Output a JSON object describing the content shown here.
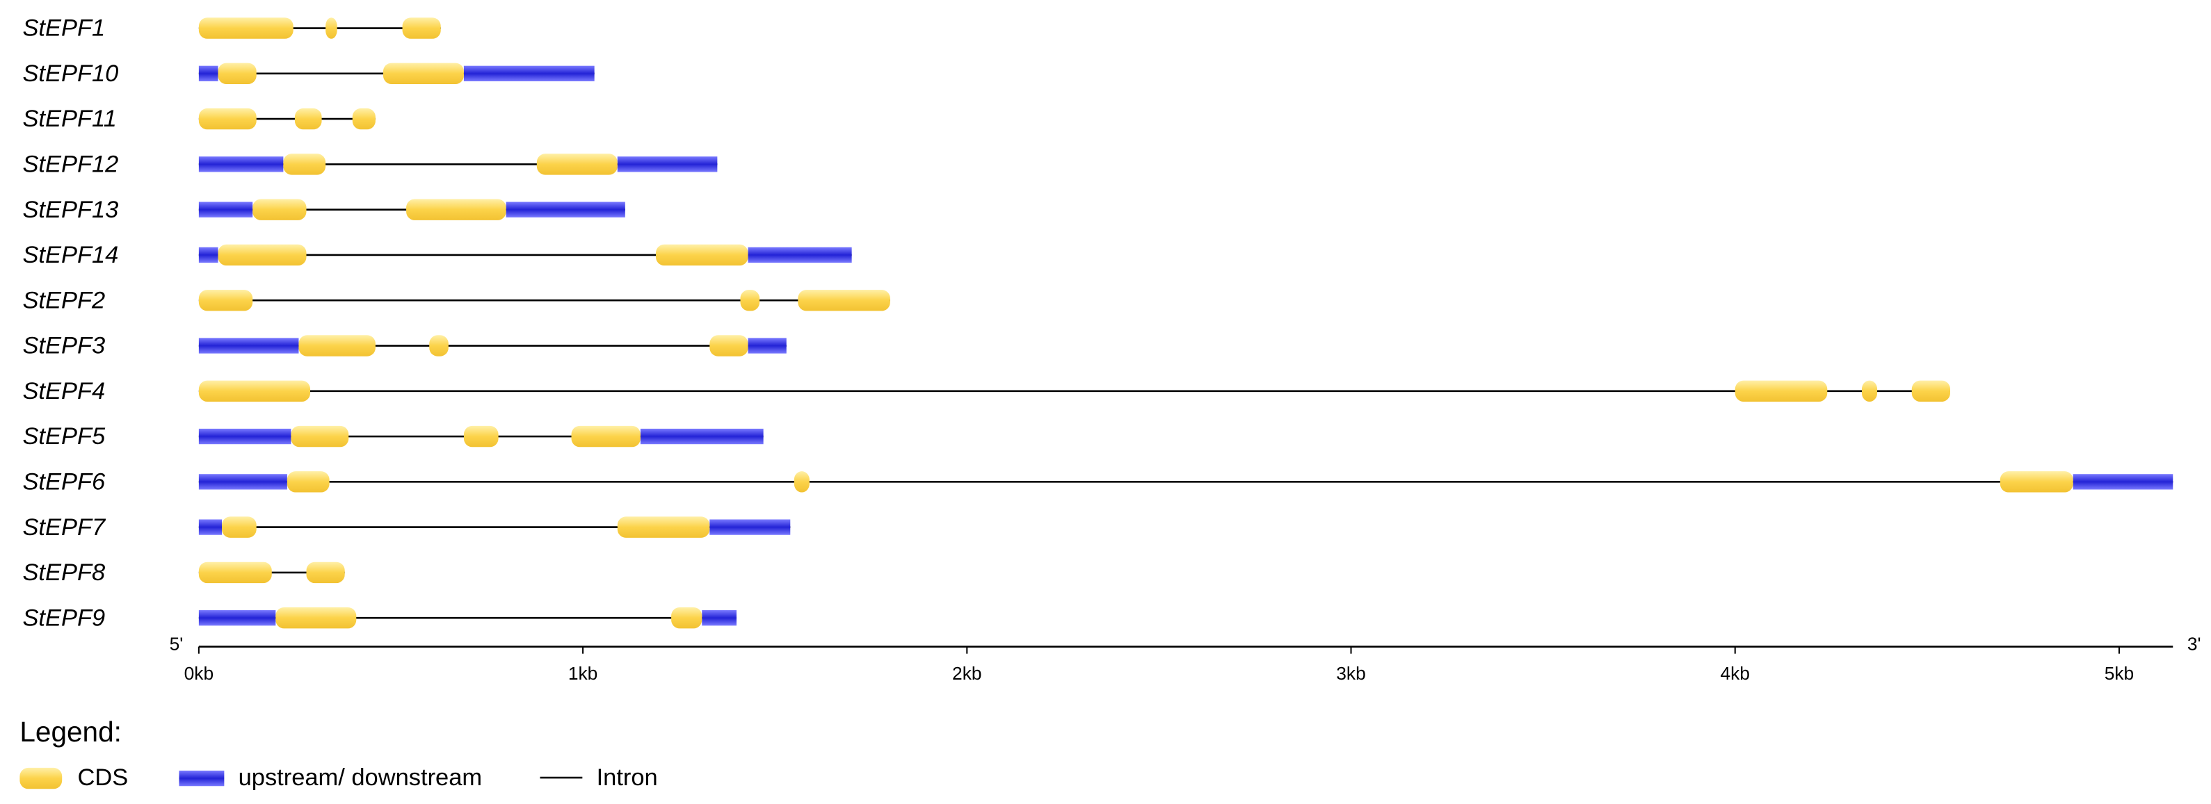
{
  "chart_data": {
    "type": "gene-structure",
    "xlim": [
      0,
      5.14
    ],
    "xticks": [
      {
        "value": 0,
        "label": "0kb"
      },
      {
        "value": 1,
        "label": "1kb"
      },
      {
        "value": 2,
        "label": "2kb"
      },
      {
        "value": 3,
        "label": "3kb"
      },
      {
        "value": 4,
        "label": "4kb"
      },
      {
        "value": 5,
        "label": "5kb"
      }
    ],
    "start_label": "5'",
    "end_label": "3'",
    "cds_color": "#fcd34a",
    "utr_color": "#2323d6",
    "intron_color": "#000000",
    "genes": [
      {
        "name": "StEPF1",
        "cds": [
          [
            0,
            0.246
          ],
          [
            0.33,
            0.36
          ],
          [
            0.53,
            0.63
          ]
        ],
        "utr": []
      },
      {
        "name": "StEPF10",
        "cds": [
          [
            0.05,
            0.15
          ],
          [
            0.48,
            0.69
          ]
        ],
        "utr": [
          [
            0,
            0.05
          ],
          [
            0.69,
            1.03
          ]
        ]
      },
      {
        "name": "StEPF11",
        "cds": [
          [
            0,
            0.15
          ],
          [
            0.25,
            0.32
          ],
          [
            0.4,
            0.46
          ]
        ],
        "utr": []
      },
      {
        "name": "StEPF12",
        "cds": [
          [
            0.22,
            0.33
          ],
          [
            0.88,
            1.09
          ]
        ],
        "utr": [
          [
            0,
            0.22
          ],
          [
            1.09,
            1.35
          ]
        ]
      },
      {
        "name": "StEPF13",
        "cds": [
          [
            0.14,
            0.28
          ],
          [
            0.54,
            0.8
          ]
        ],
        "utr": [
          [
            0,
            0.14
          ],
          [
            0.8,
            1.11
          ]
        ]
      },
      {
        "name": "StEPF14",
        "cds": [
          [
            0.05,
            0.28
          ],
          [
            1.19,
            1.43
          ]
        ],
        "utr": [
          [
            0,
            0.05
          ],
          [
            1.43,
            1.7
          ]
        ]
      },
      {
        "name": "StEPF2",
        "cds": [
          [
            0,
            0.14
          ],
          [
            1.41,
            1.46
          ],
          [
            1.56,
            1.8
          ]
        ],
        "utr": []
      },
      {
        "name": "StEPF3",
        "cds": [
          [
            0.26,
            0.46
          ],
          [
            0.6,
            0.65
          ],
          [
            1.33,
            1.43
          ]
        ],
        "utr": [
          [
            0,
            0.26
          ],
          [
            1.43,
            1.53
          ]
        ]
      },
      {
        "name": "StEPF4",
        "cds": [
          [
            0,
            0.29
          ],
          [
            4.0,
            4.24
          ],
          [
            4.33,
            4.37
          ],
          [
            4.46,
            4.56
          ]
        ],
        "utr": []
      },
      {
        "name": "StEPF5",
        "cds": [
          [
            0.24,
            0.39
          ],
          [
            0.69,
            0.78
          ],
          [
            0.97,
            1.15
          ]
        ],
        "utr": [
          [
            0,
            0.24
          ],
          [
            1.15,
            1.47
          ]
        ]
      },
      {
        "name": "StEPF6",
        "cds": [
          [
            0.23,
            0.34
          ],
          [
            1.55,
            1.59
          ],
          [
            4.69,
            4.88
          ]
        ],
        "utr": [
          [
            0,
            0.23
          ],
          [
            4.88,
            5.14
          ]
        ]
      },
      {
        "name": "StEPF7",
        "cds": [
          [
            0.06,
            0.15
          ],
          [
            1.09,
            1.33
          ]
        ],
        "utr": [
          [
            0,
            0.06
          ],
          [
            1.33,
            1.54
          ]
        ]
      },
      {
        "name": "StEPF8",
        "cds": [
          [
            0,
            0.19
          ],
          [
            0.28,
            0.38
          ]
        ],
        "utr": []
      },
      {
        "name": "StEPF9",
        "cds": [
          [
            0.2,
            0.41
          ],
          [
            1.23,
            1.31
          ]
        ],
        "utr": [
          [
            0,
            0.2
          ],
          [
            1.31,
            1.4
          ]
        ]
      }
    ],
    "legend": {
      "title": "Legend:",
      "cds": "CDS",
      "utr": "upstream/ downstream",
      "intron": "Intron"
    }
  }
}
